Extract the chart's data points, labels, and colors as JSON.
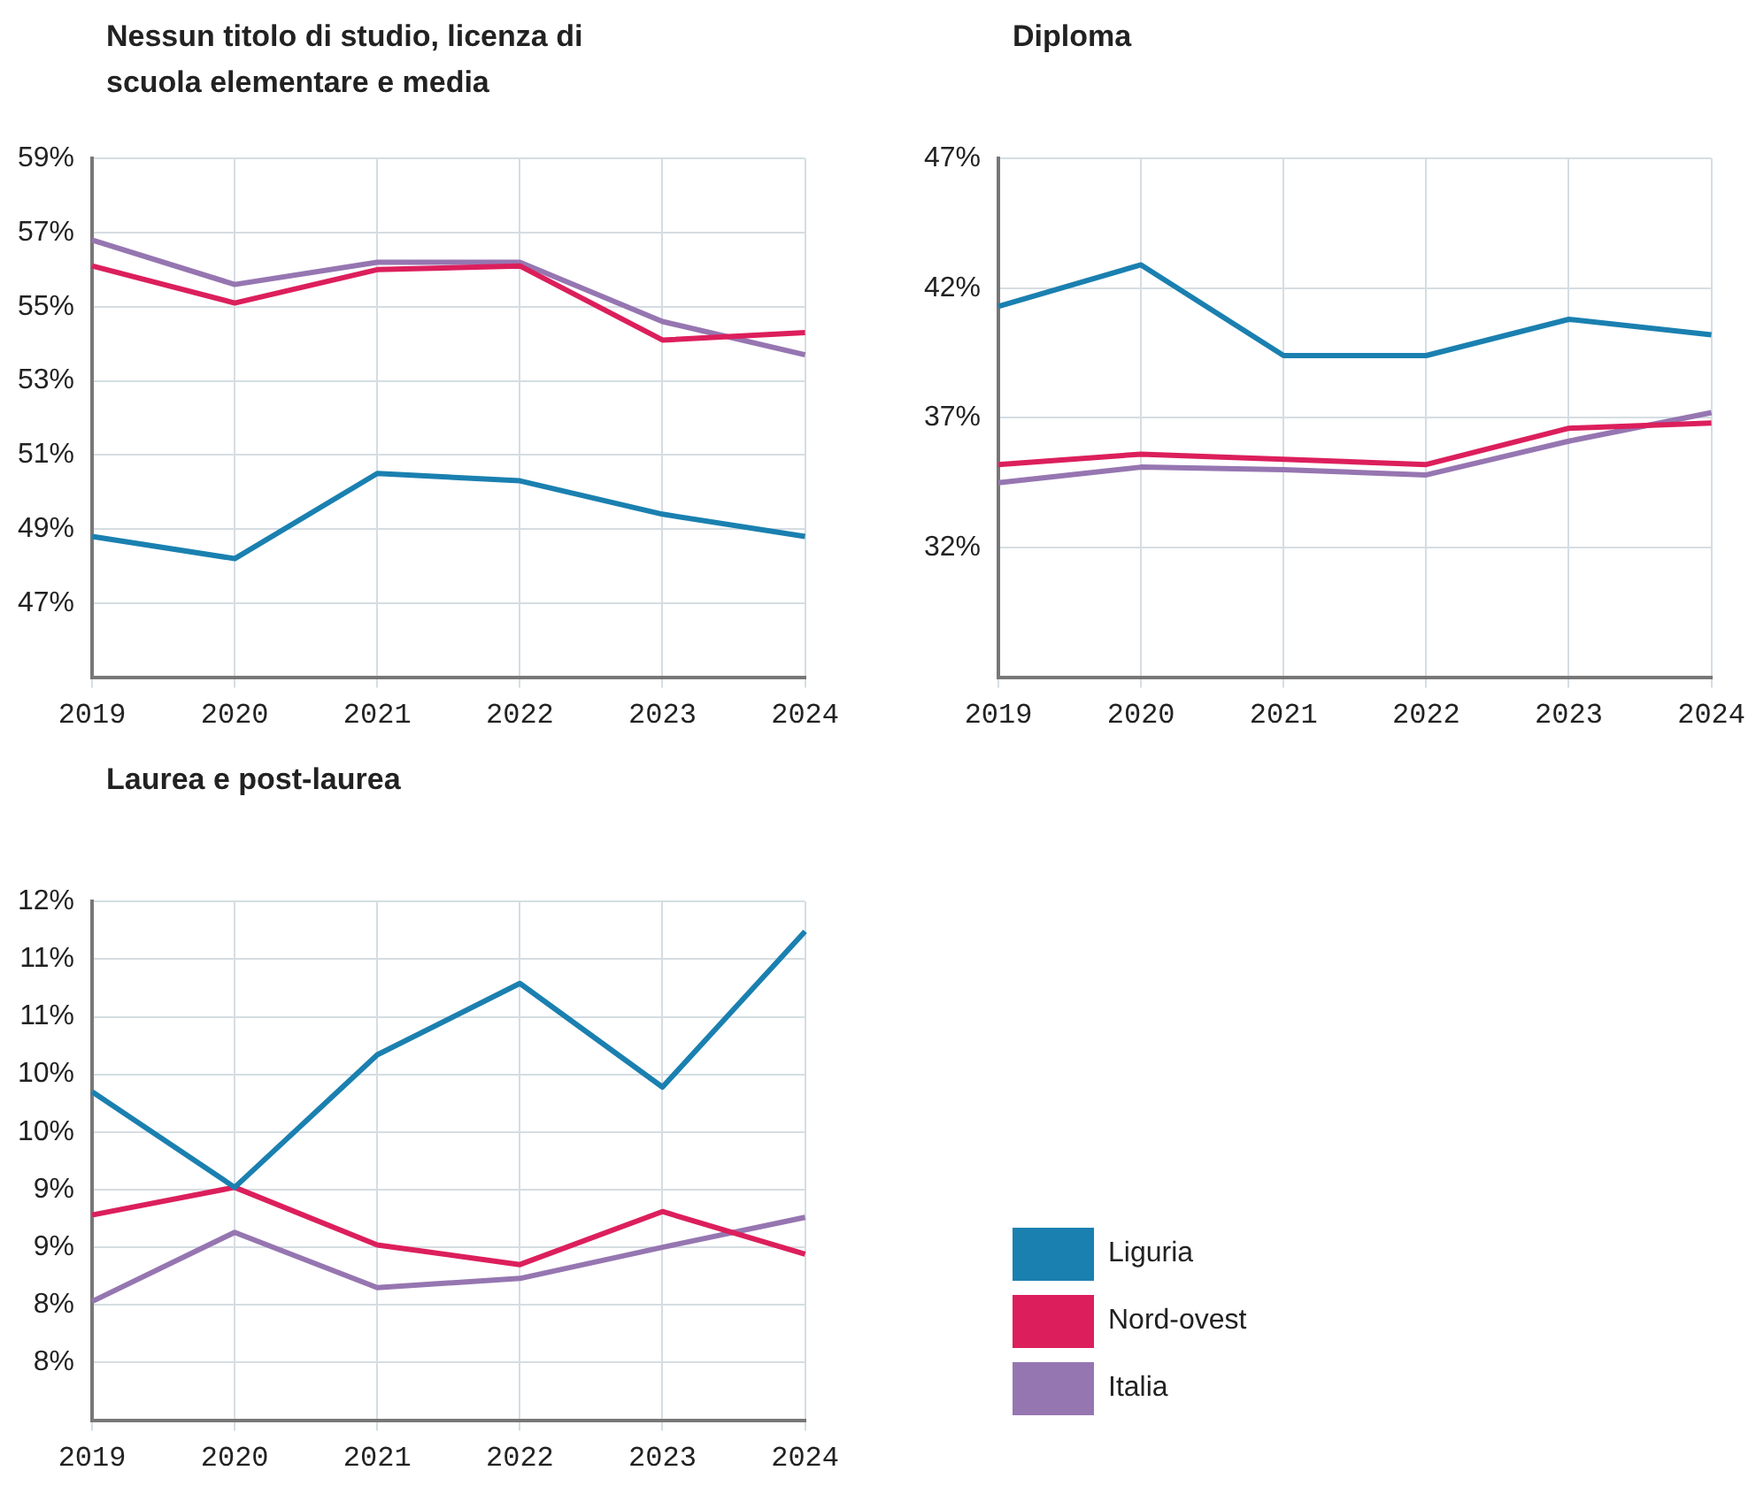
{
  "chart_data": [
    {
      "type": "line",
      "title": "Nessun titolo di studio, licenza di scuola elementare e media",
      "categories": [
        "2019",
        "2020",
        "2021",
        "2022",
        "2023",
        "2024"
      ],
      "ylim": [
        45,
        59
      ],
      "yticks": [
        {
          "value": 47,
          "label": "47%"
        },
        {
          "value": 49,
          "label": "49%"
        },
        {
          "value": 51,
          "label": "51%"
        },
        {
          "value": 53,
          "label": "53%"
        },
        {
          "value": 55,
          "label": "55%"
        },
        {
          "value": 57,
          "label": "57%"
        },
        {
          "value": 59,
          "label": "59%"
        }
      ],
      "grid": true,
      "marker": "none",
      "legend": "bottom right",
      "series": [
        {
          "name": "Liguria",
          "color": "#1a80b0",
          "values": [
            48.8,
            48.2,
            50.5,
            50.3,
            49.4,
            48.8
          ]
        },
        {
          "name": "Nord-ovest",
          "color": "#dc1f5c",
          "values": [
            56.1,
            55.1,
            56.0,
            56.1,
            54.1,
            54.3
          ]
        },
        {
          "name": "Italia",
          "color": "#9676b1",
          "values": [
            56.8,
            55.6,
            56.2,
            56.2,
            54.6,
            53.7
          ]
        }
      ]
    },
    {
      "type": "line",
      "title": "Diploma",
      "categories": [
        "2019",
        "2020",
        "2021",
        "2022",
        "2023",
        "2024"
      ],
      "ylim": [
        27,
        47
      ],
      "yticks": [
        {
          "value": 32,
          "label": "32%"
        },
        {
          "value": 37,
          "label": "37%"
        },
        {
          "value": 42,
          "label": "42%"
        },
        {
          "value": 47,
          "label": "47%"
        }
      ],
      "grid": true,
      "marker": "none",
      "series": [
        {
          "color": "#1a80b0",
          "values": [
            41.3,
            42.9,
            39.4,
            39.4,
            40.8,
            40.2
          ]
        },
        {
          "color": "#dc1f5c",
          "values": [
            35.2,
            35.6,
            35.4,
            35.2,
            36.6,
            36.8
          ]
        },
        {
          "color": "#9676b1",
          "values": [
            34.5,
            35.1,
            35.0,
            34.8,
            36.1,
            37.2
          ]
        }
      ]
    },
    {
      "type": "line",
      "title": "Laurea e post-laurea",
      "categories": [
        "2019",
        "2020",
        "2021",
        "2022",
        "2023",
        "2024"
      ],
      "ylim": [
        7.5,
        12
      ],
      "yticks": [
        {
          "value": 8,
          "label": "8%"
        },
        {
          "value": 8.5,
          "label": "8%"
        },
        {
          "value": 9,
          "label": "9%"
        },
        {
          "value": 9.5,
          "label": "9%"
        },
        {
          "value": 10,
          "label": "10%"
        },
        {
          "value": 10.5,
          "label": "10%"
        },
        {
          "value": 11,
          "label": "11%"
        },
        {
          "value": 11.5,
          "label": "11%"
        },
        {
          "value": 12,
          "label": "12%"
        }
      ],
      "grid": true,
      "marker": "none",
      "series": [
        {
          "color": "#1a80b0",
          "values": [
            10.35,
            9.52,
            10.67,
            11.29,
            10.39,
            11.74
          ]
        },
        {
          "color": "#dc1f5c",
          "values": [
            9.28,
            9.52,
            9.02,
            8.85,
            9.31,
            8.94
          ]
        },
        {
          "color": "#9676b1",
          "values": [
            8.53,
            9.13,
            8.65,
            8.73,
            9.0,
            9.26
          ]
        }
      ]
    }
  ]
}
